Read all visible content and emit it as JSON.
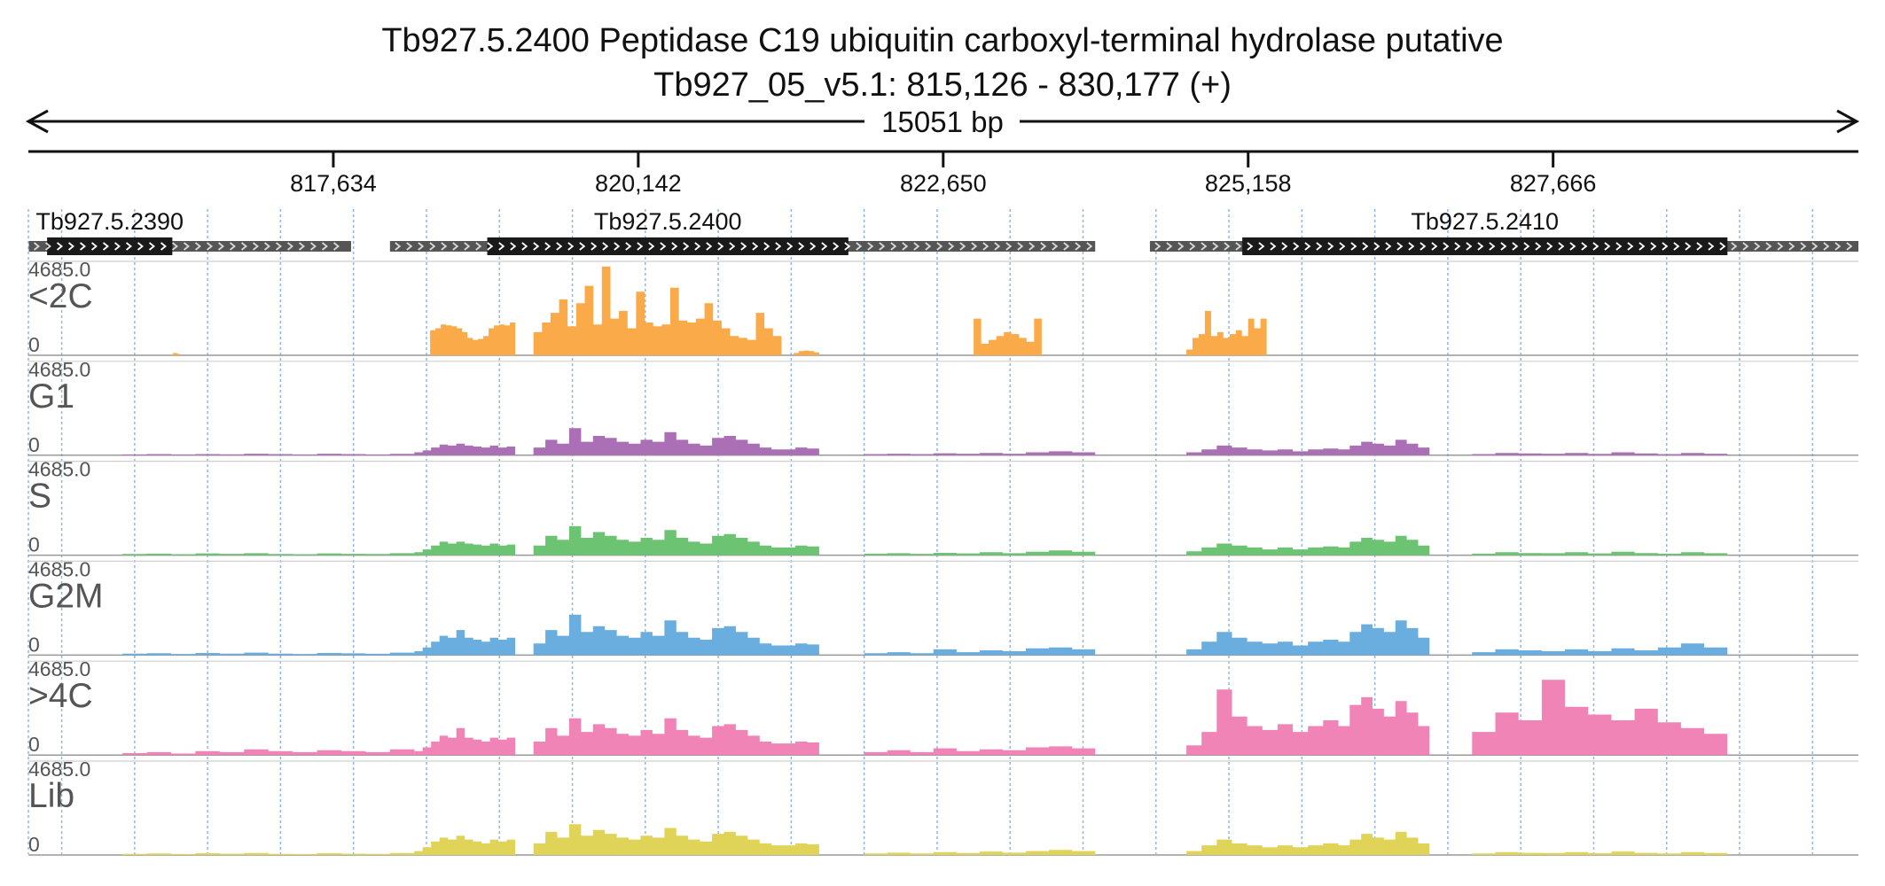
{
  "header": {
    "title": "Tb927.5.2400  Peptidase C19  ubiquitin carboxyl-terminal hydrolase  putative",
    "region": "Tb927_05_v5.1: 815,126 - 830,177 (+)",
    "span_label": "15051 bp"
  },
  "chart_data": {
    "type": "area",
    "title": "Tb927.5.2400  Peptidase C19  ubiquitin carboxyl-terminal hydrolase  putative",
    "subtitle": "Tb927_05_v5.1: 815,126 - 830,177 (+)",
    "xlim": [
      815126,
      830177
    ],
    "x_ticks": [
      817634,
      820142,
      822650,
      825158,
      827666
    ],
    "x_tick_labels": [
      "817,634",
      "820,142",
      "822,650",
      "825,158",
      "827,666"
    ],
    "strand": "+",
    "genes": [
      {
        "name": "Tb927.5.2390",
        "utr_start": 815130,
        "utr_end": 817780,
        "cds_start": 815280,
        "cds_end": 816310
      },
      {
        "name": "Tb927.5.2400",
        "utr_start": 818100,
        "utr_end": 823900,
        "cds_start": 818900,
        "cds_end": 821870
      },
      {
        "name": "Tb927.5.2410",
        "utr_start": 824350,
        "utr_end": 830177,
        "cds_start": 825110,
        "cds_end": 829100
      }
    ],
    "ylim": [
      0,
      4685.0
    ],
    "y_max_label": "4685.0",
    "y_min_label": "0",
    "grid": true,
    "tracks": [
      {
        "name": "<2C",
        "color": "#fbaa4a",
        "segments": [
          {
            "start": 816300,
            "end": 816380,
            "values": [
              60,
              120,
              120,
              80,
              60
            ]
          },
          {
            "start": 818430,
            "end": 819130,
            "values": [
              1300,
              1400,
              1600,
              1550,
              1500,
              1400,
              1200,
              900,
              800,
              850,
              1000,
              1400,
              1550,
              1600,
              1550,
              1700
            ]
          },
          {
            "start": 819280,
            "end": 821320,
            "values": [
              1200,
              1700,
              2200,
              2900,
              1500,
              2700,
              3600,
              1600,
              4600,
              1900,
              2300,
              1400,
              3300,
              1700,
              1500,
              1600,
              3500,
              1800,
              1700,
              1900,
              2700,
              1800,
              1400,
              1000,
              900,
              800,
              2200,
              1400,
              1000
            ]
          },
          {
            "start": 821420,
            "end": 821630,
            "values": [
              120,
              220,
              250,
              220,
              150
            ]
          },
          {
            "start": 822900,
            "end": 823460,
            "values": [
              1900,
              600,
              800,
              1000,
              1200,
              1100,
              900,
              700,
              1900
            ]
          },
          {
            "start": 824650,
            "end": 825310,
            "values": [
              300,
              900,
              1100,
              2300,
              1000,
              1200,
              900,
              1100,
              1300,
              1000,
              1900,
              1400,
              1900
            ]
          }
        ]
      },
      {
        "name": "G1",
        "color": "#aa6fb5",
        "segments": [
          {
            "start": 815900,
            "end": 818300,
            "values": [
              40,
              60,
              40,
              60,
              50,
              80,
              60,
              40,
              80,
              60,
              40,
              70
            ]
          },
          {
            "start": 818300,
            "end": 819130,
            "values": [
              150,
              250,
              400,
              550,
              500,
              600,
              500,
              450,
              400,
              500,
              400,
              450
            ]
          },
          {
            "start": 819280,
            "end": 821630,
            "values": [
              400,
              800,
              600,
              1400,
              700,
              1000,
              900,
              700,
              600,
              800,
              700,
              1200,
              800,
              600,
              500,
              900,
              1000,
              800,
              600,
              400,
              300,
              300,
              400,
              350
            ]
          },
          {
            "start": 822000,
            "end": 823900,
            "values": [
              60,
              80,
              60,
              100,
              80,
              120,
              80,
              150,
              200,
              150
            ]
          },
          {
            "start": 824650,
            "end": 825900,
            "values": [
              150,
              300,
              500,
              400,
              300,
              250,
              300,
              200,
              300,
              350
            ]
          },
          {
            "start": 825900,
            "end": 826650,
            "values": [
              300,
              500,
              700,
              600,
              500,
              800,
              600,
              400
            ]
          },
          {
            "start": 827000,
            "end": 829100,
            "values": [
              60,
              120,
              90,
              80,
              120,
              70,
              150,
              90,
              60,
              120,
              80
            ]
          }
        ]
      },
      {
        "name": "S",
        "color": "#6cc372",
        "segments": [
          {
            "start": 815900,
            "end": 818300,
            "values": [
              60,
              80,
              50,
              90,
              70,
              100,
              60,
              50,
              90,
              70,
              60,
              100
            ]
          },
          {
            "start": 818300,
            "end": 819130,
            "values": [
              150,
              300,
              500,
              700,
              600,
              700,
              600,
              550,
              500,
              600,
              500,
              550
            ]
          },
          {
            "start": 819280,
            "end": 821630,
            "values": [
              500,
              1000,
              800,
              1500,
              900,
              1200,
              1000,
              800,
              700,
              900,
              800,
              1300,
              900,
              700,
              600,
              1000,
              1100,
              900,
              700,
              500,
              400,
              400,
              500,
              450
            ]
          },
          {
            "start": 822000,
            "end": 823900,
            "values": [
              80,
              100,
              70,
              120,
              90,
              150,
              100,
              180,
              250,
              180
            ]
          },
          {
            "start": 824650,
            "end": 825900,
            "values": [
              200,
              400,
              600,
              500,
              400,
              300,
              400,
              300,
              400,
              450
            ]
          },
          {
            "start": 825900,
            "end": 826650,
            "values": [
              400,
              700,
              900,
              800,
              700,
              1000,
              800,
              500
            ]
          },
          {
            "start": 827000,
            "end": 829100,
            "values": [
              80,
              150,
              110,
              100,
              150,
              90,
              180,
              110,
              80,
              150,
              100
            ]
          }
        ]
      },
      {
        "name": "G2M",
        "color": "#6aaedf",
        "segments": [
          {
            "start": 815900,
            "end": 818300,
            "values": [
              80,
              100,
              60,
              110,
              80,
              130,
              80,
              60,
              110,
              90,
              70,
              130
            ]
          },
          {
            "start": 818300,
            "end": 819130,
            "values": [
              200,
              400,
              700,
              1000,
              900,
              1300,
              900,
              800,
              700,
              900,
              800,
              900
            ]
          },
          {
            "start": 819280,
            "end": 821630,
            "values": [
              600,
              1300,
              1000,
              2100,
              1200,
              1500,
              1300,
              1000,
              900,
              1200,
              1000,
              1800,
              1200,
              900,
              800,
              1400,
              1500,
              1200,
              900,
              600,
              500,
              500,
              600,
              550
            ]
          },
          {
            "start": 822000,
            "end": 823900,
            "values": [
              100,
              150,
              100,
              300,
              150,
              250,
              200,
              350,
              400,
              300
            ]
          },
          {
            "start": 824650,
            "end": 825900,
            "values": [
              300,
              700,
              1200,
              900,
              700,
              600,
              700,
              500,
              700,
              800
            ]
          },
          {
            "start": 825900,
            "end": 826650,
            "values": [
              700,
              1200,
              1600,
              1400,
              1200,
              1800,
              1400,
              900
            ]
          },
          {
            "start": 827000,
            "end": 829100,
            "values": [
              150,
              300,
              250,
              200,
              300,
              200,
              350,
              250,
              400,
              600,
              400
            ]
          }
        ]
      },
      {
        "name": ">4C",
        "color": "#f184b6",
        "segments": [
          {
            "start": 815900,
            "end": 818300,
            "values": [
              100,
              150,
              80,
              200,
              150,
              300,
              200,
              150,
              250,
              200,
              150,
              300
            ]
          },
          {
            "start": 818300,
            "end": 819130,
            "values": [
              200,
              400,
              700,
              1000,
              900,
              1400,
              900,
              800,
              700,
              900,
              800,
              900
            ]
          },
          {
            "start": 819280,
            "end": 821630,
            "values": [
              700,
              1400,
              1000,
              1900,
              1200,
              1600,
              1400,
              1100,
              1000,
              1300,
              1100,
              1900,
              1300,
              1000,
              900,
              1500,
              1600,
              1300,
              1000,
              700,
              600,
              600,
              700,
              650
            ]
          },
          {
            "start": 822000,
            "end": 823900,
            "values": [
              150,
              250,
              150,
              350,
              200,
              300,
              250,
              400,
              450,
              350
            ]
          },
          {
            "start": 824650,
            "end": 825900,
            "values": [
              500,
              1200,
              3400,
              2000,
              1500,
              1300,
              1600,
              1200,
              1500,
              1800
            ]
          },
          {
            "start": 825900,
            "end": 826650,
            "values": [
              1500,
              2600,
              3000,
              2400,
              2000,
              2800,
              2200,
              1500
            ]
          },
          {
            "start": 827000,
            "end": 829100,
            "values": [
              1200,
              2200,
              1800,
              3900,
              2500,
              2100,
              1800,
              2400,
              1700,
              1400,
              1100
            ]
          }
        ]
      },
      {
        "name": "Lib",
        "color": "#e0d458",
        "segments": [
          {
            "start": 815900,
            "end": 818300,
            "values": [
              60,
              80,
              50,
              90,
              70,
              100,
              60,
              50,
              90,
              70,
              60,
              100
            ]
          },
          {
            "start": 818300,
            "end": 819130,
            "values": [
              200,
              400,
              700,
              900,
              800,
              1000,
              800,
              700,
              600,
              800,
              700,
              800
            ]
          },
          {
            "start": 819280,
            "end": 821630,
            "values": [
              600,
              1200,
              900,
              1600,
              1000,
              1300,
              1100,
              900,
              800,
              1000,
              900,
              1400,
              1000,
              800,
              700,
              1100,
              1200,
              1000,
              800,
              600,
              500,
              500,
              600,
              550
            ]
          },
          {
            "start": 822000,
            "end": 823900,
            "values": [
              80,
              120,
              80,
              150,
              100,
              180,
              120,
              200,
              260,
              200
            ]
          },
          {
            "start": 824650,
            "end": 825900,
            "values": [
              200,
              500,
              800,
              600,
              500,
              400,
              500,
              400,
              500,
              600
            ]
          },
          {
            "start": 825900,
            "end": 826650,
            "values": [
              500,
              800,
              1100,
              900,
              800,
              1200,
              900,
              600
            ]
          },
          {
            "start": 827000,
            "end": 829100,
            "values": [
              80,
              150,
              110,
              100,
              150,
              90,
              180,
              110,
              80,
              150,
              100
            ]
          }
        ]
      }
    ]
  }
}
